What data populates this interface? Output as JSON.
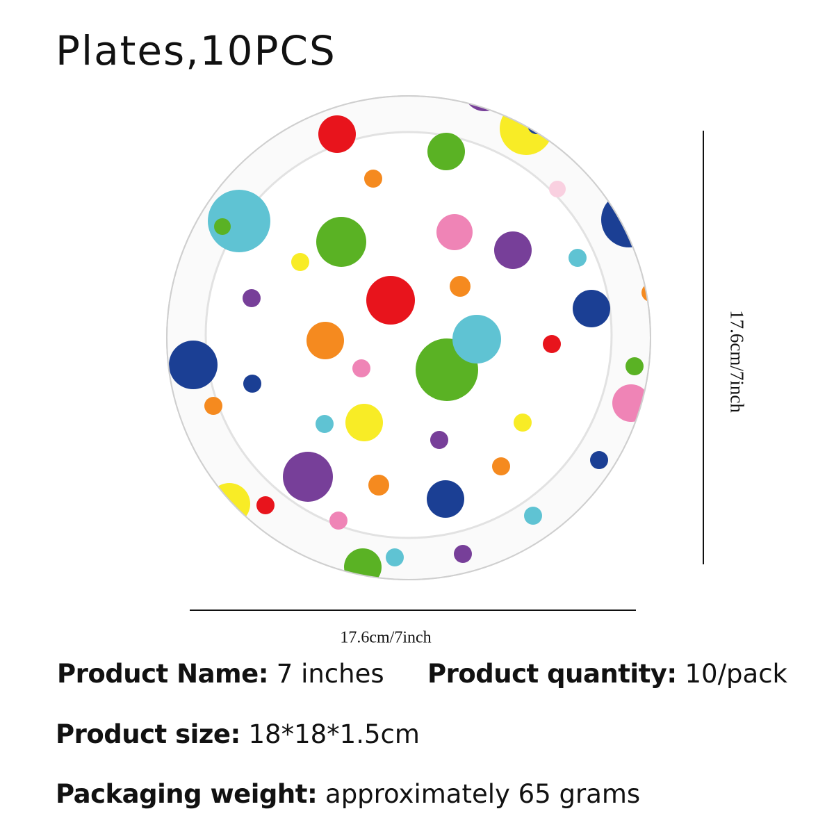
{
  "title": "Plates,10PCS",
  "dimensions": {
    "height": "17.6cm/7inch",
    "width": "17.6cm/7inch"
  },
  "specs": [
    {
      "label": "Product Name:",
      "value": "7 inches"
    },
    {
      "label": "Product quantity:",
      "value": "10/pack"
    },
    {
      "label": "Product size:",
      "value": "18*18*1.5cm"
    },
    {
      "label": "Packaging weight:",
      "value": "approximately 65 grams"
    }
  ]
}
